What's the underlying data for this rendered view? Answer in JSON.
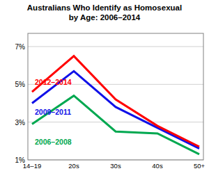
{
  "chart_data": {
    "type": "line",
    "title": "Australians Who Identify as Homosexual\nby Age: 2006–2014",
    "categories": [
      "14–19",
      "20s",
      "30s",
      "40s",
      "50+"
    ],
    "series": [
      {
        "name": "2012–2014",
        "color": "#ff0000",
        "values": [
          4.6,
          6.5,
          4.2,
          2.8,
          1.7
        ]
      },
      {
        "name": "2009–2011",
        "color": "#1010e8",
        "values": [
          4.0,
          5.7,
          3.8,
          2.7,
          1.6
        ]
      },
      {
        "name": "2006–2008",
        "color": "#00a850",
        "values": [
          2.9,
          4.4,
          2.5,
          2.4,
          1.3
        ]
      }
    ],
    "ylim": [
      1,
      7.7
    ],
    "yticks": [
      {
        "value": 1,
        "label": "1%"
      },
      {
        "value": 3,
        "label": "3%"
      },
      {
        "value": 5,
        "label": "5%"
      },
      {
        "value": 7,
        "label": "7%"
      }
    ],
    "grid": true
  }
}
